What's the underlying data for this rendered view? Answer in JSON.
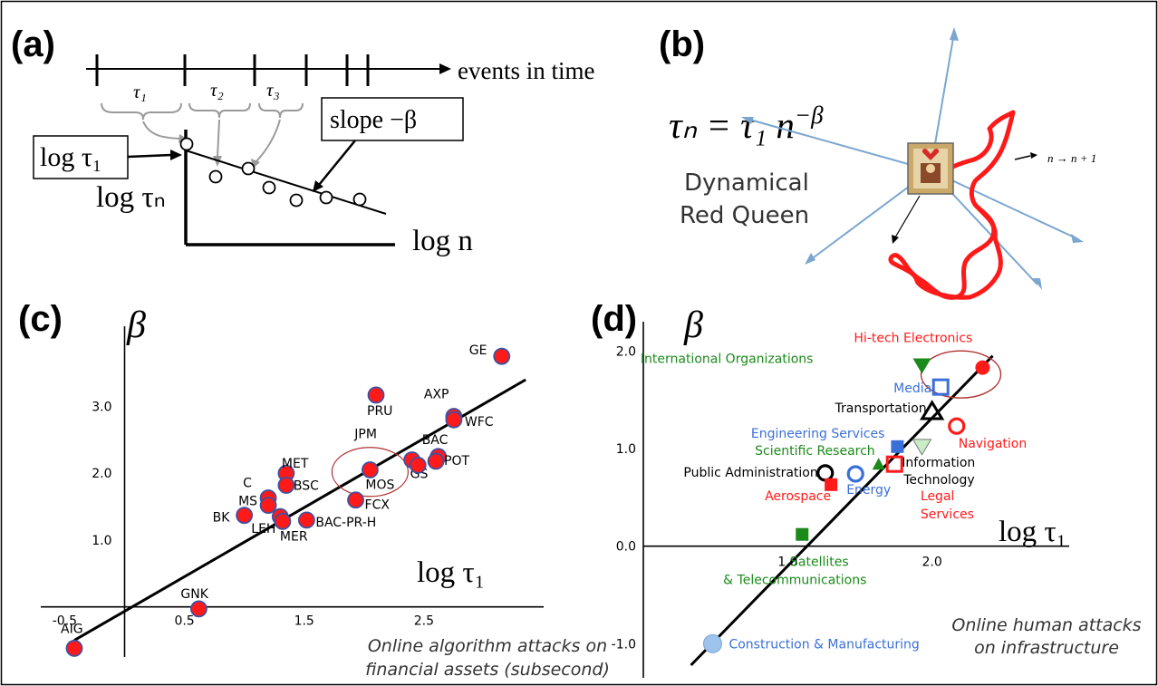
{
  "panel_a": {
    "label": "(a)",
    "timeline_label": "events in time",
    "tau1": "τ₁",
    "tau2": "τ₂",
    "tau3": "τ₃",
    "log_tau1_box": "log τ₁",
    "slope_box": "slope −β",
    "ylabel": "log τₙ",
    "xlabel": "log n"
  },
  "panel_b": {
    "label": "(b)",
    "equation_lhs": "τₙ = τ₁ n",
    "equation_exp": "−β",
    "title_line1": "Dynamical",
    "title_line2": "Red Queen",
    "step_label": "n → n + 1"
  },
  "colors": {
    "red": "#ff1a1a",
    "green": "#1a8a1a",
    "blue": "#3a6fd8",
    "black": "#000000",
    "arrow_blue": "#7aa6d0",
    "ellipse": "#b03030"
  },
  "chart_data": [
    {
      "type": "scatter",
      "panel": "(c)",
      "ylabel": "β",
      "xlabel": "log τ₁",
      "caption_line1": "Online algorithm attacks on",
      "caption_line2": "financial assets (subsecond)",
      "xlim": [
        -0.7,
        3.5
      ],
      "ylim": [
        -0.75,
        4.2
      ],
      "x_ticks": [
        "-0.5",
        "0.5",
        "1.5",
        "2.5"
      ],
      "y_ticks": [
        "1.0",
        "2.0",
        "3.0"
      ],
      "points": [
        {
          "label": "GE",
          "x": 3.15,
          "y": 3.75
        },
        {
          "label": "PRU",
          "x": 2.1,
          "y": 3.17
        },
        {
          "label": "AXP",
          "x": 2.75,
          "y": 2.85
        },
        {
          "label": "WFC",
          "x": 2.75,
          "y": 2.8
        },
        {
          "label": "BAC",
          "x": 2.62,
          "y": 2.25
        },
        {
          "label": "POT",
          "x": 2.6,
          "y": 2.18
        },
        {
          "label": "GS",
          "x": 2.4,
          "y": 2.2
        },
        {
          "label": "JPM",
          "x": 2.45,
          "y": 2.12
        },
        {
          "label": "MOS",
          "x": 2.05,
          "y": 2.05
        },
        {
          "label": "FCX",
          "x": 1.93,
          "y": 1.6
        },
        {
          "label": "MET",
          "x": 1.35,
          "y": 2.0
        },
        {
          "label": "BSC",
          "x": 1.35,
          "y": 1.82
        },
        {
          "label": "C",
          "x": 1.2,
          "y": 1.63
        },
        {
          "label": "MS",
          "x": 1.2,
          "y": 1.52
        },
        {
          "label": "BK",
          "x": 1.0,
          "y": 1.37
        },
        {
          "label": "LEH",
          "x": 1.3,
          "y": 1.35
        },
        {
          "label": "MER",
          "x": 1.32,
          "y": 1.28
        },
        {
          "label": "BAC-PR-H",
          "x": 1.52,
          "y": 1.3
        },
        {
          "label": "GNK",
          "x": 0.62,
          "y": -0.03
        },
        {
          "label": "AIG",
          "x": -0.42,
          "y": -0.62
        }
      ],
      "fit_line": {
        "x1": -0.42,
        "y1": -0.5,
        "x2": 3.35,
        "y2": 3.4
      }
    },
    {
      "type": "scatter",
      "panel": "(d)",
      "ylabel": "β",
      "xlabel": "log τ₁",
      "caption_line1": "Online human attacks",
      "caption_line2": "on infrastructure",
      "xlim": [
        0.0,
        2.95
      ],
      "ylim": [
        -1.35,
        2.3
      ],
      "x_ticks": [
        "1.0",
        "2.0"
      ],
      "y_ticks": [
        "2.0",
        "1.0",
        "0.0",
        "-1.0"
      ],
      "points": [
        {
          "label": "Hi-tech Electronics",
          "x": 2.35,
          "y": 1.83,
          "color": "red",
          "marker": "circle-filled"
        },
        {
          "label": "International Organizations",
          "x": 1.93,
          "y": 1.85,
          "color": "green",
          "marker": "triangle-down-filled"
        },
        {
          "label": "Media",
          "x": 2.06,
          "y": 1.63,
          "color": "blue",
          "marker": "square-open"
        },
        {
          "label": "Transportation",
          "x": 2.0,
          "y": 1.38,
          "color": "black",
          "marker": "triangle-up-open"
        },
        {
          "label": "Navigation",
          "x": 2.17,
          "y": 1.23,
          "color": "red",
          "marker": "circle-open"
        },
        {
          "label": "Engineering Services",
          "x": 1.76,
          "y": 1.02,
          "color": "blue",
          "marker": "square-filled"
        },
        {
          "label": "",
          "x": 1.93,
          "y": 1.02,
          "color": "green",
          "marker": "triangle-down-light"
        },
        {
          "label": "Scientific Research",
          "x": 1.63,
          "y": 0.84,
          "color": "green",
          "marker": "triangle-up-filled"
        },
        {
          "label": "Information Technology",
          "x": 1.74,
          "y": 0.84,
          "color": "red",
          "marker": "square-open"
        },
        {
          "label": "Public Administration",
          "x": 1.26,
          "y": 0.75,
          "color": "black",
          "marker": "circle-open"
        },
        {
          "label": "Energy",
          "x": 1.47,
          "y": 0.74,
          "color": "blue",
          "marker": "circle-open"
        },
        {
          "label": "Aerospace",
          "x": 1.3,
          "y": 0.63,
          "color": "red",
          "marker": "square-filled"
        },
        {
          "label": "Legal Services",
          "x": 1.8,
          "y": 0.6,
          "color": "red",
          "marker": "none"
        },
        {
          "label": "Satellites & Telecommunications",
          "x": 1.1,
          "y": 0.12,
          "color": "green",
          "marker": "square-filled"
        },
        {
          "label": "Construction & Manufacturing",
          "x": 0.48,
          "y": -1.0,
          "color": "blue",
          "marker": "circle-light"
        }
      ],
      "fit_line": {
        "x1": 0.33,
        "y1": -1.22,
        "x2": 2.42,
        "y2": 1.95
      }
    }
  ]
}
